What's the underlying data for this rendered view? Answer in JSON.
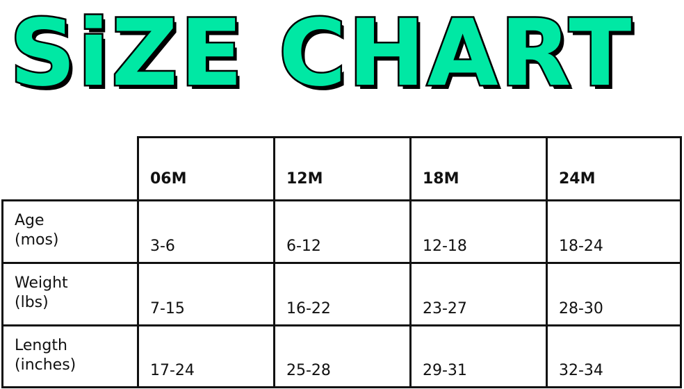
{
  "title": "SiZE CHART",
  "accent_color": "#00e8a4",
  "table": {
    "columns": [
      "06M",
      "12M",
      "18M",
      "24M"
    ],
    "rows": [
      {
        "label": [
          "Age",
          "(mos)"
        ],
        "values": [
          "3-6",
          "6-12",
          "12-18",
          "18-24"
        ]
      },
      {
        "label": [
          "Weight",
          "(lbs)"
        ],
        "values": [
          "7-15",
          "16-22",
          "23-27",
          "28-30"
        ]
      },
      {
        "label": [
          "Length",
          "(inches)"
        ],
        "values": [
          "17-24",
          "25-28",
          "29-31",
          "32-34"
        ]
      }
    ]
  }
}
